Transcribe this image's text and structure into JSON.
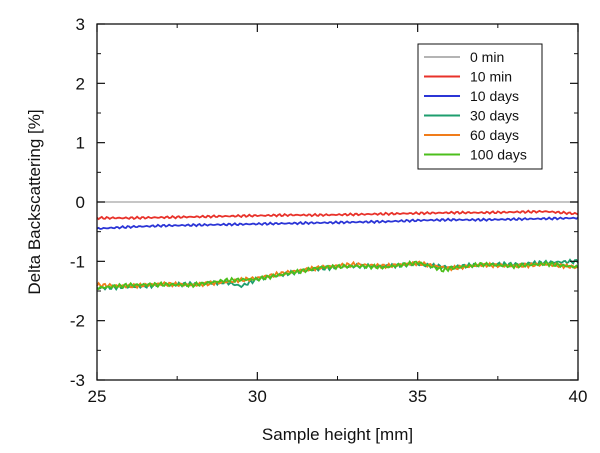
{
  "chart_data": {
    "type": "line",
    "title": "",
    "xlabel": "Sample height [mm]",
    "ylabel": "Delta Backscattering [%]",
    "xlim": [
      25,
      40
    ],
    "ylim": [
      -3,
      3
    ],
    "xticks": [
      25,
      30,
      35,
      40
    ],
    "yticks": [
      3,
      2,
      1,
      0,
      -1,
      -2,
      -3
    ],
    "grid": false,
    "legend_position": "top-right",
    "series": [
      {
        "name": "0 min",
        "color": "#b4b4b4",
        "x": [
          25,
          40
        ],
        "y": [
          0,
          0
        ]
      },
      {
        "name": "10 min",
        "color": "#e8322a",
        "x": [
          25,
          26,
          27,
          28,
          29,
          30,
          31,
          32,
          33,
          34,
          35,
          36,
          37,
          38,
          39,
          40
        ],
        "y": [
          -0.27,
          -0.27,
          -0.26,
          -0.25,
          -0.24,
          -0.23,
          -0.22,
          -0.22,
          -0.21,
          -0.2,
          -0.19,
          -0.18,
          -0.18,
          -0.17,
          -0.16,
          -0.2
        ]
      },
      {
        "name": "10 days",
        "color": "#2b35d6",
        "x": [
          25,
          26,
          27,
          28,
          29,
          30,
          31,
          32,
          33,
          34,
          35,
          36,
          37,
          38,
          39,
          40
        ],
        "y": [
          -0.45,
          -0.42,
          -0.4,
          -0.39,
          -0.38,
          -0.37,
          -0.36,
          -0.35,
          -0.34,
          -0.33,
          -0.31,
          -0.3,
          -0.3,
          -0.29,
          -0.28,
          -0.27
        ]
      },
      {
        "name": "30 days",
        "color": "#1e9e6e",
        "x": [
          25,
          26,
          27,
          28,
          29,
          29.5,
          30,
          31,
          32,
          33,
          34,
          35,
          36,
          37,
          38,
          39,
          40
        ],
        "y": [
          -1.45,
          -1.43,
          -1.4,
          -1.38,
          -1.35,
          -1.42,
          -1.3,
          -1.2,
          -1.12,
          -1.08,
          -1.08,
          -1.05,
          -1.1,
          -1.05,
          -1.05,
          -1.02,
          -1.0
        ]
      },
      {
        "name": "60 days",
        "color": "#f07c1a",
        "x": [
          25,
          26,
          27,
          28,
          29,
          30,
          31,
          32,
          33,
          34,
          35,
          36,
          37,
          38,
          39,
          40
        ],
        "y": [
          -1.4,
          -1.42,
          -1.38,
          -1.4,
          -1.35,
          -1.28,
          -1.18,
          -1.1,
          -1.05,
          -1.08,
          -1.03,
          -1.12,
          -1.06,
          -1.08,
          -1.05,
          -1.1
        ]
      },
      {
        "name": "100 days",
        "color": "#4cbf1c",
        "x": [
          25,
          26,
          27,
          28,
          29,
          30,
          31,
          32,
          33,
          34,
          35,
          35.8,
          36,
          37,
          38,
          39,
          40
        ],
        "y": [
          -1.45,
          -1.4,
          -1.39,
          -1.4,
          -1.32,
          -1.3,
          -1.2,
          -1.1,
          -1.08,
          -1.1,
          -1.02,
          -1.15,
          -1.12,
          -1.05,
          -1.08,
          -1.04,
          -1.1
        ]
      }
    ]
  }
}
